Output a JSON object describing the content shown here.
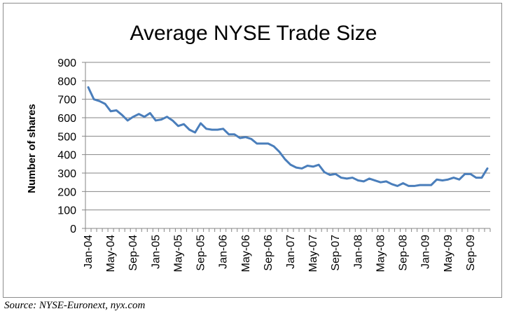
{
  "source_note": "Source:  NYSE-Euronext, nyx.com",
  "chart_data": {
    "type": "line",
    "title": "Average NYSE Trade Size",
    "xlabel": "",
    "ylabel": "Number of shares",
    "ylim": [
      0,
      900
    ],
    "yticks": [
      0,
      100,
      200,
      300,
      400,
      500,
      600,
      700,
      800,
      900
    ],
    "grid": true,
    "legend": "none",
    "line_color": "#4a7ebb",
    "x": [
      "Jan-04",
      "Feb-04",
      "Mar-04",
      "Apr-04",
      "May-04",
      "Jun-04",
      "Jul-04",
      "Aug-04",
      "Sep-04",
      "Oct-04",
      "Nov-04",
      "Dec-04",
      "Jan-05",
      "Feb-05",
      "Mar-05",
      "Apr-05",
      "May-05",
      "Jun-05",
      "Jul-05",
      "Aug-05",
      "Sep-05",
      "Oct-05",
      "Nov-05",
      "Dec-05",
      "Jan-06",
      "Feb-06",
      "Mar-06",
      "Apr-06",
      "May-06",
      "Jun-06",
      "Jul-06",
      "Aug-06",
      "Sep-06",
      "Oct-06",
      "Nov-06",
      "Dec-06",
      "Jan-07",
      "Feb-07",
      "Mar-07",
      "Apr-07",
      "May-07",
      "Jun-07",
      "Jul-07",
      "Aug-07",
      "Sep-07",
      "Oct-07",
      "Nov-07",
      "Dec-07",
      "Jan-08",
      "Feb-08",
      "Mar-08",
      "Apr-08",
      "May-08",
      "Jun-08",
      "Jul-08",
      "Aug-08",
      "Sep-08",
      "Oct-08",
      "Nov-08",
      "Dec-08",
      "Jan-09",
      "Feb-09",
      "Mar-09",
      "Apr-09",
      "May-09",
      "Jun-09",
      "Jul-09",
      "Aug-09",
      "Sep-09",
      "Oct-09",
      "Nov-09",
      "Dec-09"
    ],
    "xtick_labels": [
      "Jan-04",
      "May-04",
      "Sep-04",
      "Jan-05",
      "May-05",
      "Sep-05",
      "Jan-06",
      "May-06",
      "Sep-06",
      "Jan-07",
      "May-07",
      "Sep-07",
      "Jan-08",
      "May-08",
      "Sep-08",
      "Jan-09",
      "May-09",
      "Sep-09"
    ],
    "series": [
      {
        "values": [
          765,
          700,
          690,
          675,
          635,
          640,
          615,
          585,
          605,
          620,
          605,
          625,
          585,
          590,
          605,
          585,
          555,
          565,
          535,
          520,
          570,
          540,
          535,
          535,
          540,
          510,
          510,
          490,
          495,
          485,
          460,
          460,
          460,
          445,
          415,
          375,
          345,
          330,
          325,
          340,
          335,
          345,
          305,
          290,
          295,
          275,
          270,
          275,
          260,
          255,
          270,
          260,
          250,
          255,
          240,
          230,
          245,
          230,
          230,
          235,
          235,
          235,
          265,
          260,
          265,
          275,
          265,
          295,
          295,
          275,
          275,
          325
        ]
      }
    ]
  }
}
